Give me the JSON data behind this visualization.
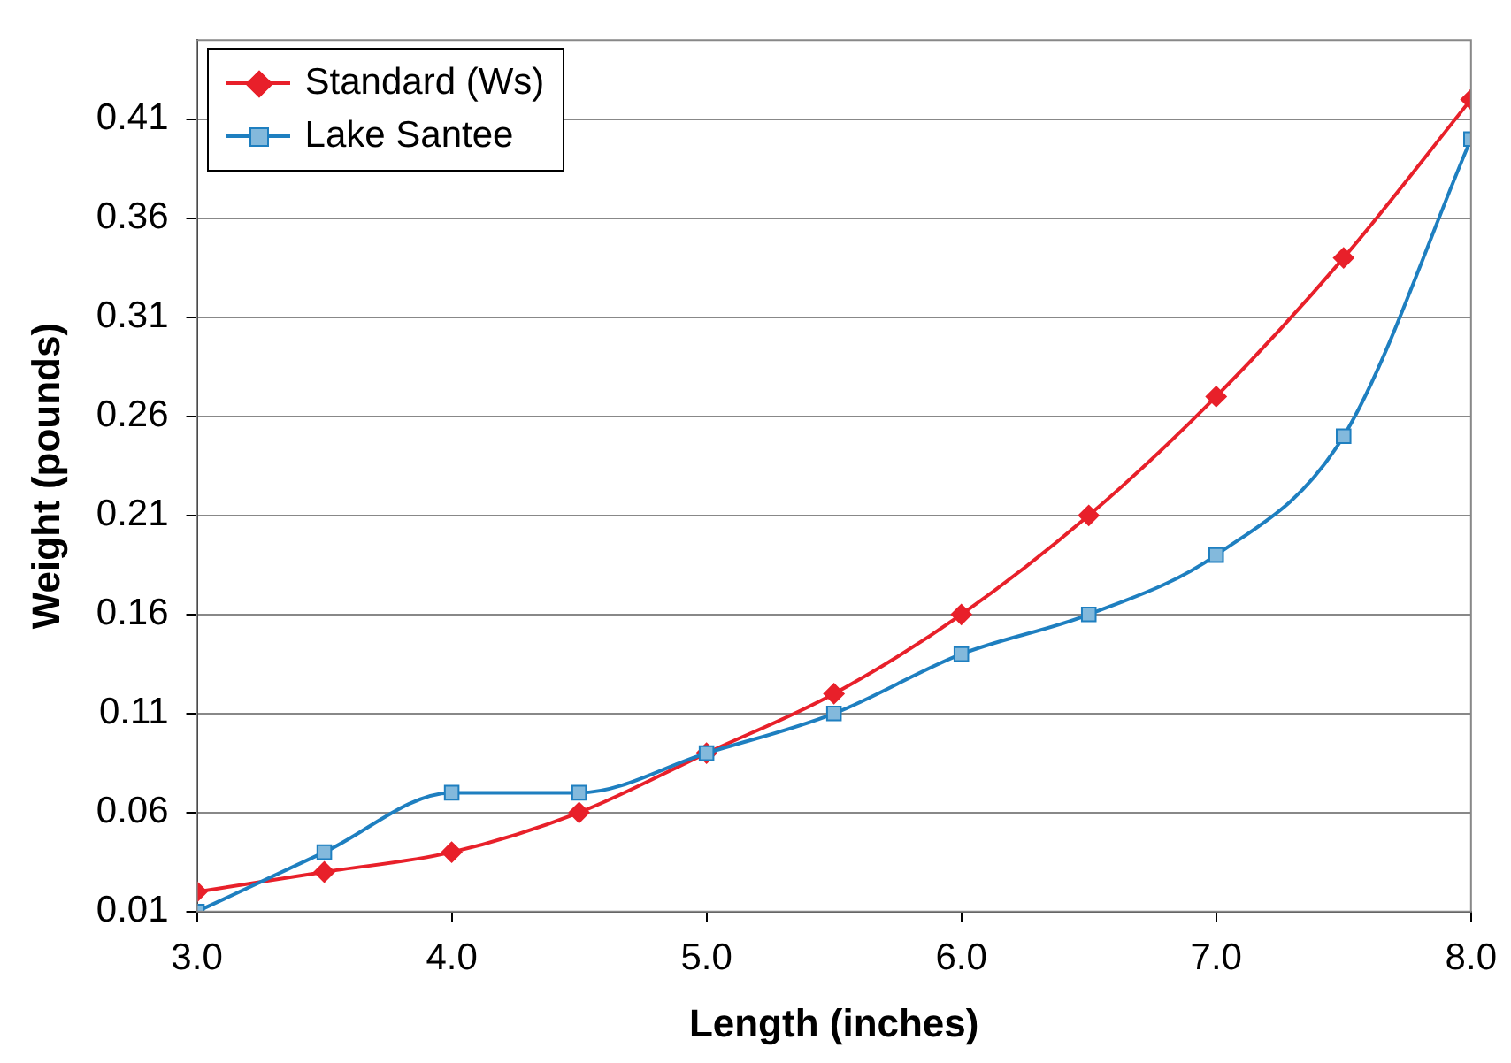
{
  "chart_data": {
    "type": "line",
    "xlabel": "Length (inches)",
    "ylabel": "Weight (pounds)",
    "x": [
      3.0,
      3.5,
      4.0,
      4.5,
      5.0,
      5.5,
      6.0,
      6.5,
      7.0,
      7.5,
      8.0
    ],
    "series": [
      {
        "name": "Standard (Ws)",
        "color": "#e8202a",
        "marker": "diamond",
        "values": [
          0.02,
          0.03,
          0.04,
          0.06,
          0.09,
          0.12,
          0.16,
          0.21,
          0.27,
          0.34,
          0.42
        ]
      },
      {
        "name": "Lake Santee",
        "color": "#1e7fc0",
        "marker": "square",
        "values": [
          0.01,
          0.04,
          0.07,
          0.07,
          0.09,
          0.11,
          0.14,
          0.16,
          0.19,
          0.25,
          0.4
        ]
      }
    ],
    "xlim": [
      3.0,
      8.0
    ],
    "xticks": [
      {
        "value": 3,
        "label": "3.0"
      },
      {
        "value": 4,
        "label": "4.0"
      },
      {
        "value": 5,
        "label": "5.0"
      },
      {
        "value": 6,
        "label": "6.0"
      },
      {
        "value": 7,
        "label": "7.0"
      },
      {
        "value": 8,
        "label": "8.0"
      }
    ],
    "ylim": [
      0.01,
      0.45
    ],
    "yticks": [
      0.01,
      0.06,
      0.11,
      0.16,
      0.21,
      0.26,
      0.31,
      0.36,
      0.41
    ],
    "grid": "y",
    "legend": "top left",
    "line_style": "solid"
  }
}
